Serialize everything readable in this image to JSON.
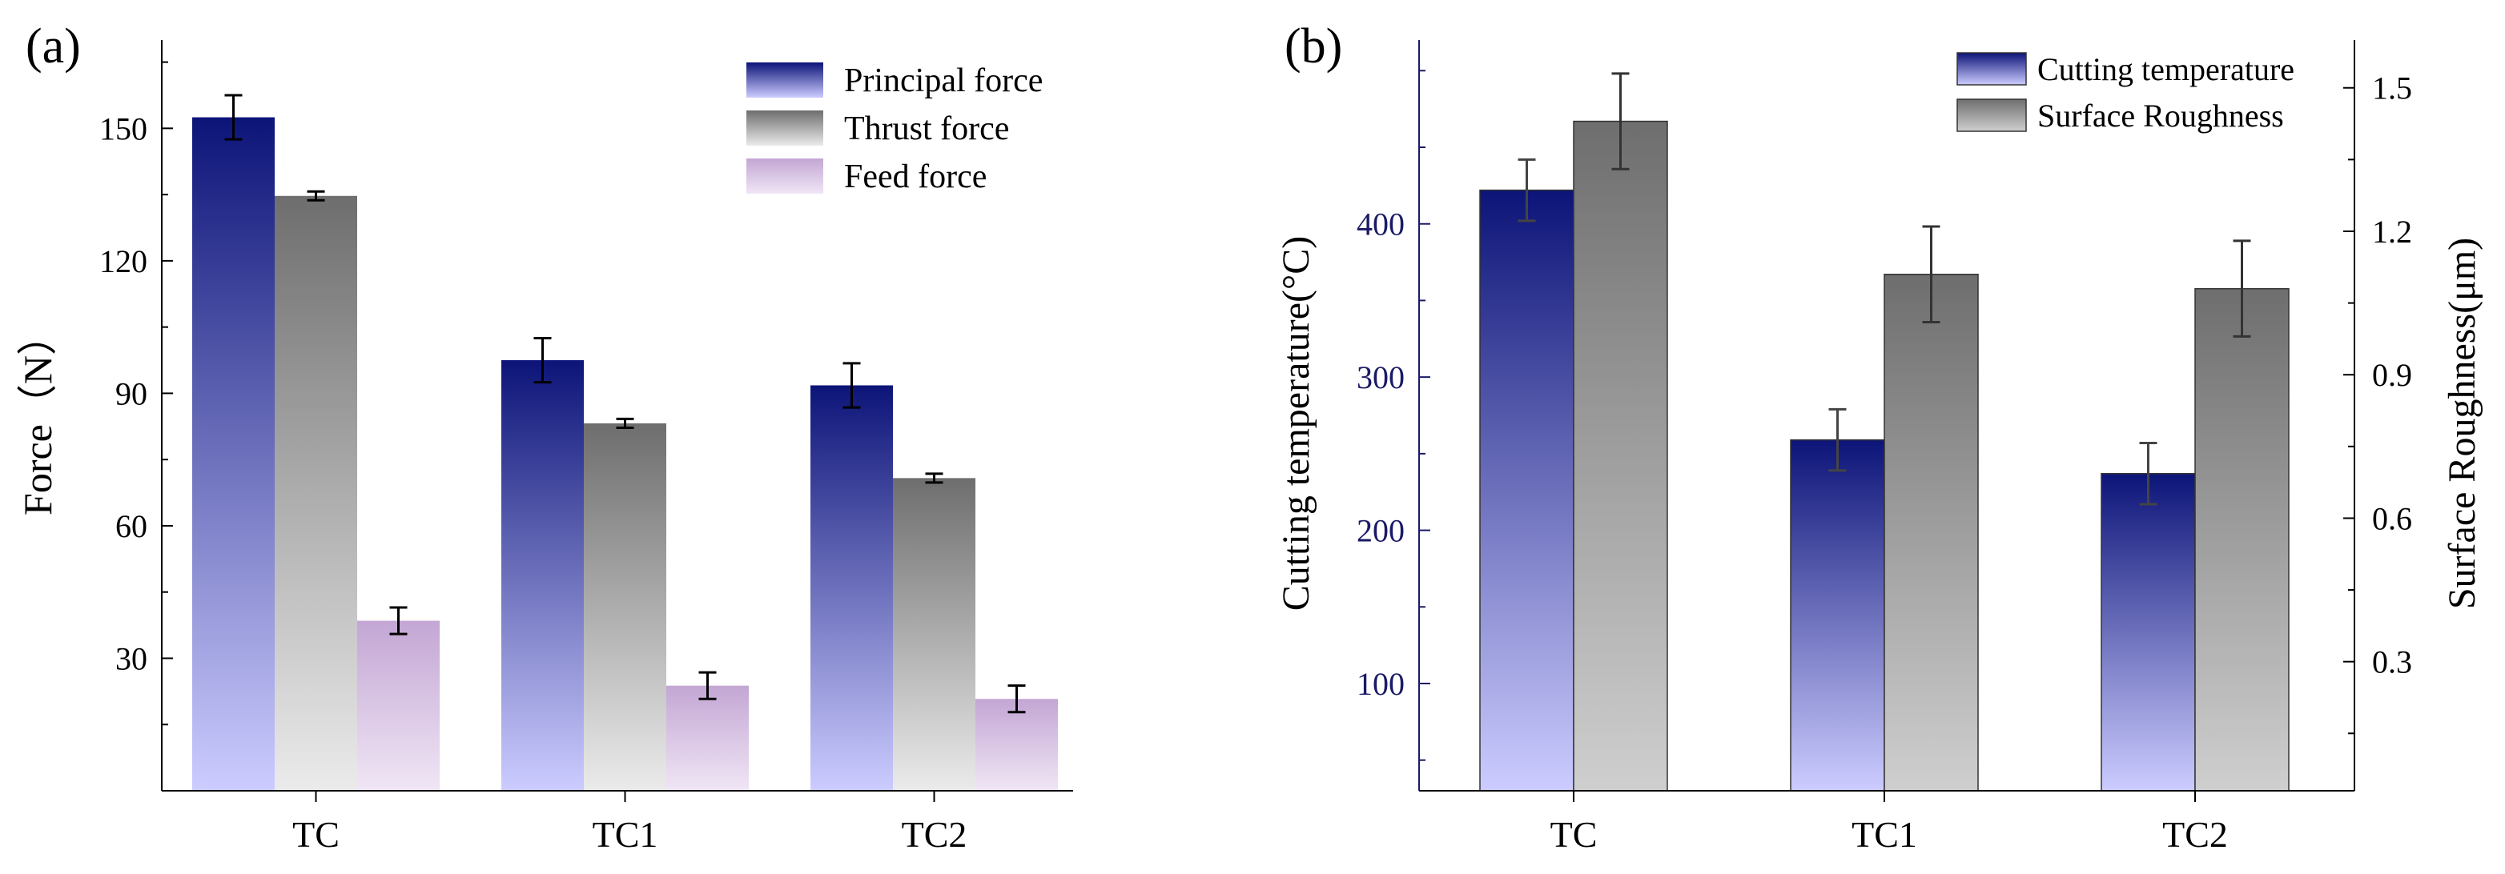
{
  "chart_data": [
    {
      "panel_label": "(a)",
      "type": "bar",
      "categories": [
        "TC",
        "TC1",
        "TC2"
      ],
      "ylabel": "Force（N）",
      "ylim": [
        0,
        170
      ],
      "yticks": [
        30,
        60,
        90,
        120,
        150
      ],
      "series": [
        {
          "name": "Principal force",
          "values": [
            152.5,
            97.5,
            91.8
          ],
          "errors": [
            5.0,
            5.0,
            5.0
          ]
        },
        {
          "name": "Thrust force",
          "values": [
            134.7,
            83.2,
            70.8
          ],
          "errors": [
            1.0,
            1.0,
            1.0
          ]
        },
        {
          "name": "Feed force",
          "values": [
            38.5,
            23.8,
            20.8
          ],
          "errors": [
            3.0,
            3.0,
            3.0
          ]
        }
      ],
      "legend": "top-right",
      "colors": {
        "principal": [
          "#0c1478",
          "#ccccff"
        ],
        "thrust": [
          "#6e6e6e",
          "#ebebeb"
        ],
        "feed": [
          "#c3a6d4",
          "#f0e6f5"
        ]
      }
    },
    {
      "panel_label": "(b)",
      "type": "bar",
      "categories": [
        "TC",
        "TC1",
        "TC2"
      ],
      "ylabel_left": "Cutting temperature(°C)",
      "ylabel_right": "Surface Roughness(μm)",
      "ylim_left": [
        30,
        520
      ],
      "ylim_right": [
        0.03,
        1.6
      ],
      "yticks_left": [
        100,
        200,
        300,
        400
      ],
      "yticks_right": [
        0.3,
        0.6,
        0.9,
        1.2,
        1.5
      ],
      "series": [
        {
          "name": "Cutting temperature",
          "axis": "left",
          "values": [
            422,
            259,
            237
          ],
          "errors": [
            20,
            20,
            20
          ]
        },
        {
          "name": "Surface Roughness",
          "axis": "right",
          "values": [
            1.43,
            1.11,
            1.08
          ],
          "errors": [
            0.1,
            0.1,
            0.1
          ]
        }
      ],
      "legend": "top-right",
      "colors": {
        "temperature": [
          "#0c1478",
          "#ccccff"
        ],
        "roughness": [
          "#6e6e6e",
          "#cfcfcf"
        ],
        "left_axis_text": "#1a1a66"
      }
    }
  ]
}
